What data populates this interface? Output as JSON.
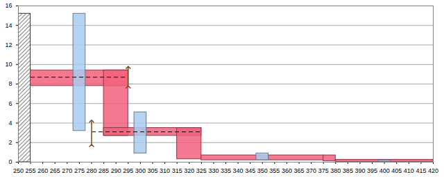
{
  "chart_data": {
    "type": "range",
    "xlim": [
      250,
      420
    ],
    "xticks": [
      250,
      255,
      260,
      265,
      270,
      275,
      280,
      285,
      290,
      295,
      300,
      305,
      310,
      315,
      320,
      325,
      330,
      335,
      340,
      345,
      350,
      355,
      360,
      365,
      370,
      375,
      380,
      385,
      390,
      395,
      400,
      405,
      410,
      415,
      420
    ],
    "ylim": [
      0,
      16
    ],
    "yticks": [
      0,
      2,
      4,
      6,
      8,
      10,
      12,
      14,
      16
    ],
    "grid": true,
    "series": [
      {
        "type": "hatched",
        "color": "#808080",
        "x1": [
          250
        ],
        "x2": [
          255
        ],
        "values": [
          15.2
        ]
      },
      {
        "type": "range",
        "color": "#f2607c",
        "x1": [
          255,
          285,
          285,
          315,
          325,
          375,
          380
        ],
        "x2": [
          295,
          295,
          325,
          325,
          375,
          380,
          420
        ],
        "low": [
          7.8,
          2.7,
          2.7,
          0.3,
          0.2,
          0.1,
          0.05
        ],
        "high": [
          9.4,
          9.4,
          3.5,
          3.5,
          0.7,
          0.7,
          0.25
        ]
      },
      {
        "type": "range",
        "color": "#a9cdf0",
        "x1": [
          272.5,
          297.5,
          347.5,
          397.5
        ],
        "x2": [
          277.5,
          302.5,
          352.5,
          402.5
        ],
        "low": [
          3.2,
          0.9,
          0.2,
          0.05
        ],
        "high": [
          15.2,
          5.1,
          0.9,
          0.2
        ]
      },
      {
        "type": "line",
        "color": "#000000",
        "line_style": "dashed",
        "x1": [
          255,
          280
        ],
        "x2": [
          295,
          325
        ],
        "values": [
          8.7,
          3.1
        ]
      },
      {
        "type": "errorbar",
        "color": "#7a4a20",
        "x": [
          295,
          280
        ],
        "low": [
          7.7,
          1.7
        ],
        "high": [
          9.7,
          4.2
        ]
      }
    ]
  }
}
